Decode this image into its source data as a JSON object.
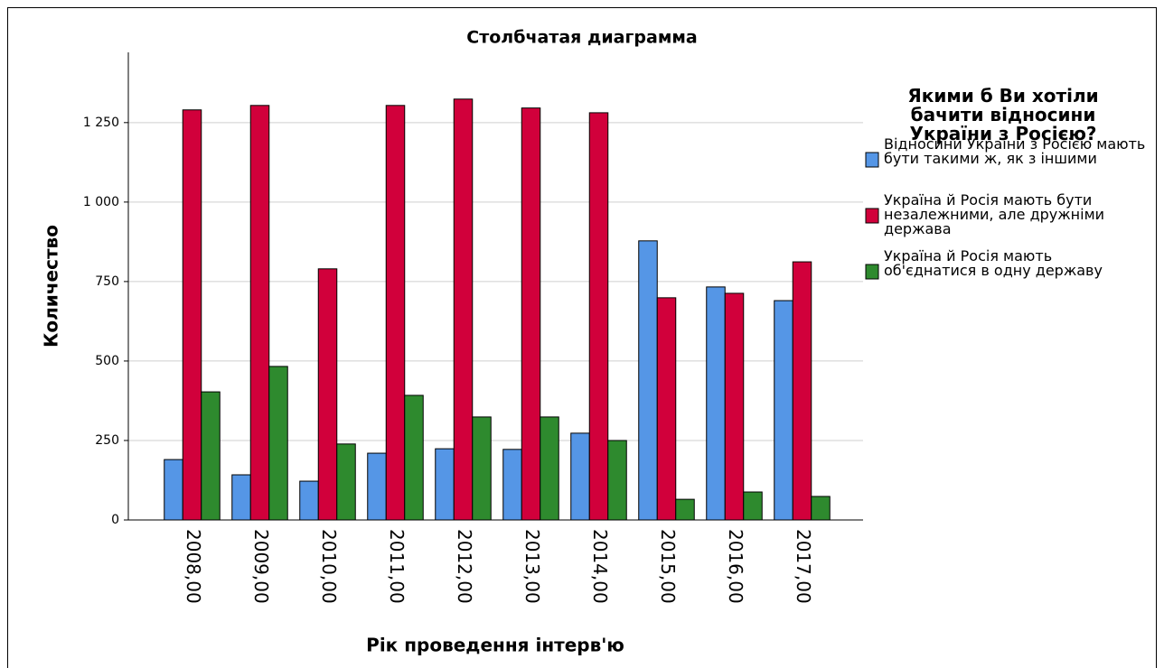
{
  "chart_data": {
    "type": "bar",
    "title": "Столбчатая диаграмма",
    "x_label": "Рік проведення інтерв'ю",
    "y_label": "Количество",
    "legend_title": "Якими б Ви хотіли бачити відносини України з Росією?",
    "legend_position": "right",
    "categories": [
      "2008,00",
      "2009,00",
      "2010,00",
      "2011,00",
      "2012,00",
      "2013,00",
      "2014,00",
      "2015,00",
      "2016,00",
      "2017,00"
    ],
    "series": [
      {
        "name": "Відносини України з Росією мають бути такими ж, як з іншими",
        "color": "#5596e6",
        "values": [
          190,
          142,
          122,
          210,
          224,
          222,
          273,
          878,
          733,
          690
        ]
      },
      {
        "name": "Україна й Росія мають бути незалежними, але дружніми держава",
        "color": "#d1003b",
        "values": [
          1290,
          1304,
          790,
          1304,
          1324,
          1296,
          1281,
          699,
          713,
          812
        ]
      },
      {
        "name": "Україна й Росія мають об'єднатися в одну державу",
        "color": "#2e8a2e",
        "values": [
          403,
          483,
          239,
          392,
          324,
          324,
          250,
          65,
          88,
          74
        ]
      }
    ],
    "ylim": [
      0,
      1471
    ],
    "yticks": [
      0,
      250,
      500,
      750,
      {
        "value": 1000,
        "label": "1 000"
      },
      {
        "value": 1250,
        "label": "1 250"
      }
    ],
    "grid": true
  }
}
